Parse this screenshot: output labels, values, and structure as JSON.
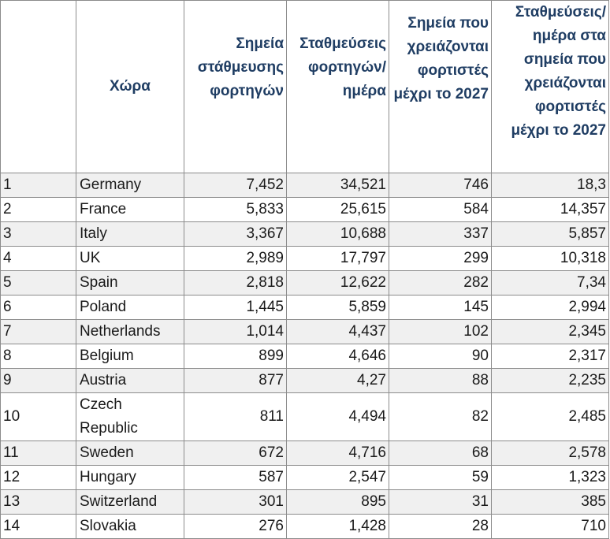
{
  "headers": {
    "index": "",
    "country": "Χώρα",
    "parking_points": "Σημεία στάθμευσης φορτηγών",
    "parkings_per_day": "Σταθμεύσεις φορτηγών/ ημέρα",
    "points_needing_chargers": "Σημεία που χρειάζονται φορτιστές μέχρι το 2027",
    "parkings_per_day_at_points": "Σταθμεύσεις/ ημέρα στα σημεία που χρειάζονται φορτιστές μέχρι το 2027"
  },
  "rows": [
    {
      "index": "1",
      "country": "Germany",
      "parking_points": "7,452",
      "parkings_per_day": "34,521",
      "points_needing_chargers": "746",
      "parkings_per_day_at_points": "18,3"
    },
    {
      "index": "2",
      "country": "France",
      "parking_points": "5,833",
      "parkings_per_day": "25,615",
      "points_needing_chargers": "584",
      "parkings_per_day_at_points": "14,357"
    },
    {
      "index": "3",
      "country": "Italy",
      "parking_points": "3,367",
      "parkings_per_day": "10,688",
      "points_needing_chargers": "337",
      "parkings_per_day_at_points": "5,857"
    },
    {
      "index": "4",
      "country": "UK",
      "parking_points": "2,989",
      "parkings_per_day": "17,797",
      "points_needing_chargers": "299",
      "parkings_per_day_at_points": "10,318"
    },
    {
      "index": "5",
      "country": "Spain",
      "parking_points": "2,818",
      "parkings_per_day": "12,622",
      "points_needing_chargers": "282",
      "parkings_per_day_at_points": "7,34"
    },
    {
      "index": "6",
      "country": "Poland",
      "parking_points": "1,445",
      "parkings_per_day": "5,859",
      "points_needing_chargers": "145",
      "parkings_per_day_at_points": "2,994"
    },
    {
      "index": "7",
      "country": "Netherlands",
      "parking_points": "1,014",
      "parkings_per_day": "4,437",
      "points_needing_chargers": "102",
      "parkings_per_day_at_points": "2,345"
    },
    {
      "index": "8",
      "country": "Belgium",
      "parking_points": "899",
      "parkings_per_day": "4,646",
      "points_needing_chargers": "90",
      "parkings_per_day_at_points": "2,317"
    },
    {
      "index": "9",
      "country": "Austria",
      "parking_points": "877",
      "parkings_per_day": "4,27",
      "points_needing_chargers": "88",
      "parkings_per_day_at_points": "2,235"
    },
    {
      "index": "10",
      "country": "Czech Republic",
      "parking_points": "811",
      "parkings_per_day": "4,494",
      "points_needing_chargers": "82",
      "parkings_per_day_at_points": "2,485"
    },
    {
      "index": "11",
      "country": "Sweden",
      "parking_points": "672",
      "parkings_per_day": "4,716",
      "points_needing_chargers": "68",
      "parkings_per_day_at_points": "2,578"
    },
    {
      "index": "12",
      "country": "Hungary",
      "parking_points": "587",
      "parkings_per_day": "2,547",
      "points_needing_chargers": "59",
      "parkings_per_day_at_points": "1,323"
    },
    {
      "index": "13",
      "country": "Switzerland",
      "parking_points": "301",
      "parkings_per_day": "895",
      "points_needing_chargers": "31",
      "parkings_per_day_at_points": "385"
    },
    {
      "index": "14",
      "country": "Slovakia",
      "parking_points": "276",
      "parkings_per_day": "1,428",
      "points_needing_chargers": "28",
      "parkings_per_day_at_points": "710"
    }
  ]
}
